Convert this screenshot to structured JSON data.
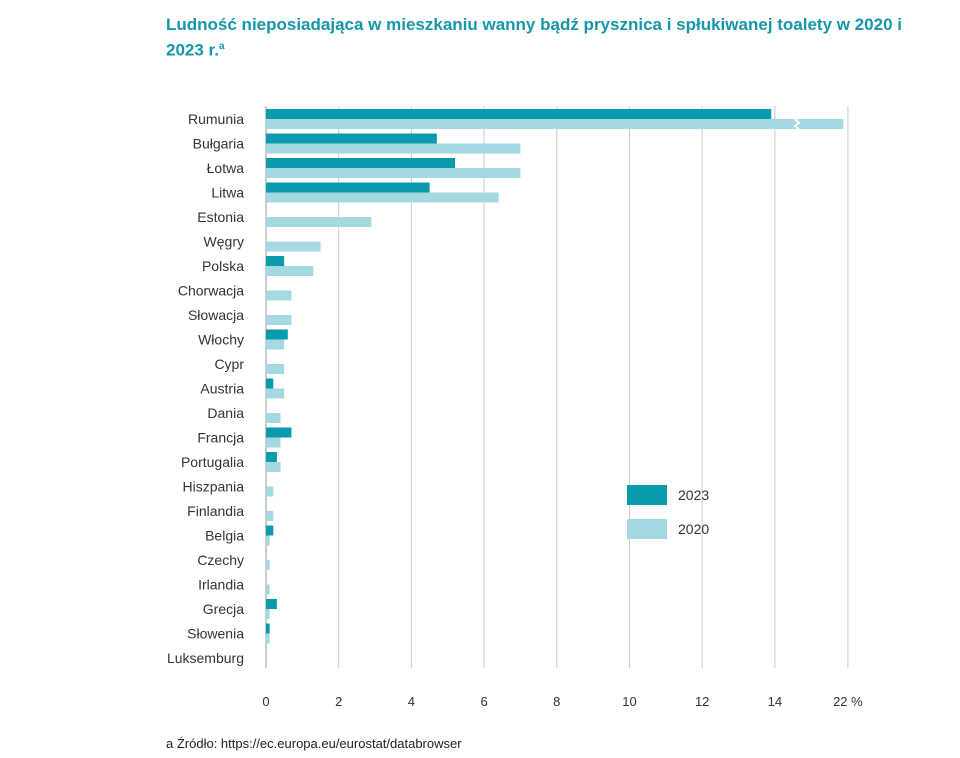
{
  "title": "Ludność nieposiadająca w mieszkaniu wanny bądź prysznica i spłukiwanej toalety w 2020 i 2023 r.",
  "title_note": "a",
  "source": "a Źródło: https://ec.europa.eu/eurostat/databrowser",
  "chart_data": {
    "type": "bar",
    "orientation": "horizontal",
    "title": "Ludność nieposiadająca w mieszkaniu wanny bądź prysznica i spłukiwanej toalety w 2020 i 2023 r.",
    "categories": [
      "Rumunia",
      "Bułgaria",
      "Łotwa",
      "Litwa",
      "Estonia",
      "Węgry",
      "Polska",
      "Chorwacja",
      "Słowacja",
      "Włochy",
      "Cypr",
      "Austria",
      "Dania",
      "Francja",
      "Portugalia",
      "Hiszpania",
      "Finlandia",
      "Belgia",
      "Czechy",
      "Irlandia",
      "Grecja",
      "Słowenia",
      "Luksemburg"
    ],
    "series": [
      {
        "name": "2023",
        "color": "#0a9aae",
        "values": [
          13.9,
          4.7,
          5.2,
          4.5,
          0,
          0,
          0.5,
          0,
          0,
          0.6,
          0,
          0.2,
          0,
          0.7,
          0.3,
          0,
          0,
          0.2,
          0,
          0,
          0.3,
          0.1,
          0
        ]
      },
      {
        "name": "2020",
        "color": "#a6d8e2",
        "values": [
          21.5,
          7.0,
          7.0,
          6.4,
          2.9,
          1.5,
          1.3,
          0.7,
          0.7,
          0.5,
          0.5,
          0.5,
          0.4,
          0.4,
          0.4,
          0.2,
          0.2,
          0.1,
          0.1,
          0.1,
          0.1,
          0.1,
          0
        ]
      }
    ],
    "x_ticks": [
      "0",
      "2",
      "4",
      "6",
      "8",
      "10",
      "12",
      "14",
      "22 %"
    ],
    "x_tick_values": [
      0,
      2,
      4,
      6,
      8,
      10,
      12,
      14,
      22
    ],
    "axis_break": [
      14,
      22
    ],
    "xlim": [
      0,
      22
    ],
    "grid": "vertical",
    "legend": "right-center"
  }
}
